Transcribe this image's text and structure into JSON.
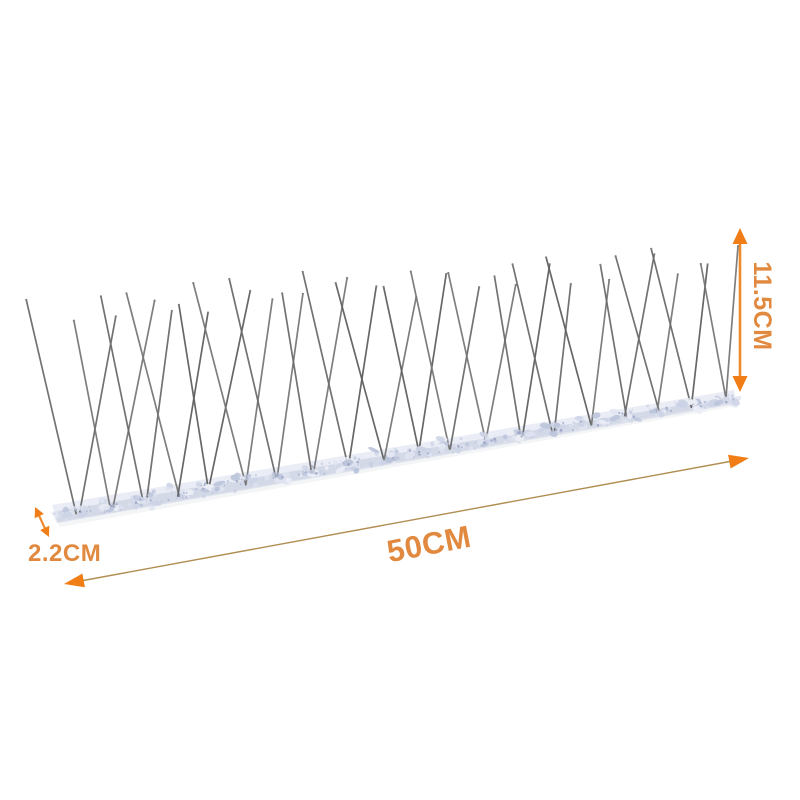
{
  "scene": {
    "background": "#ffffff",
    "accent_color": "#f07d15",
    "arrow_shaft_color": "#ee8a2e",
    "long_arrow_line_color": "#b08e52",
    "label_color": "#e1893e"
  },
  "product": {
    "name": "stainless steel bird spike strip",
    "spike_units": 20,
    "wires_per_unit": 2,
    "base_color": "#ccd3e6",
    "base_highlight": "#eceef6",
    "base_shadow": "#bac3da",
    "wire_color": "#636363"
  },
  "dimensions": {
    "height": {
      "label": "11.5CM"
    },
    "length": {
      "label": "50CM"
    },
    "depth": {
      "label": "2.2CM"
    }
  }
}
